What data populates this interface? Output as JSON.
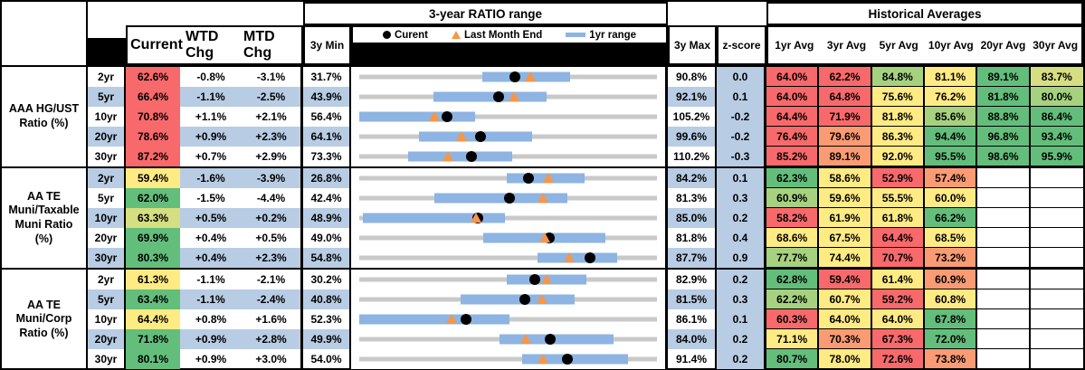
{
  "header": {
    "chart_title": "3-year RATIO range",
    "hist_title": "Historical Averages",
    "col_current": "Current",
    "col_wtd": "WTD Chg",
    "col_mtd": "MTD Chg",
    "col_min": "3y Min",
    "col_max": "3y Max",
    "col_z": "z-score",
    "avg_cols": [
      "1yr Avg",
      "3yr Avg",
      "5yr Avg",
      "10yr Avg",
      "20yr Avg",
      "30yr Avg"
    ],
    "legend": [
      {
        "marker": "current-dot",
        "label": "Curent"
      },
      {
        "marker": "last-month-end-triangle",
        "label": "Last Month End"
      },
      {
        "marker": "1yr-range-bar",
        "label": "1yr range"
      }
    ]
  },
  "palette": {
    "r": "#F8696B",
    "o": "#FA9B74",
    "y": "#FFEB84",
    "yg": "#D5DE81",
    "lg": "#A6D27F",
    "g": "#63BE7B",
    "w": "#FFFFFF",
    "stripe": "#B8CCE4",
    "range_bar": "#8DB4E2",
    "track": "#C9C9C9",
    "triangle": "#F79646",
    "dot": "#000000"
  },
  "chart_data": {
    "type": "table",
    "note": "Each row shows a 3-year ratio range chart: gray track spans 3y Min to 3y Max, blue bar = 1yr range, black dot = Current, orange triangle = Last Month End. Historical average cells are heat-mapped red-yellow-green.",
    "groups": [
      {
        "label": "AAA HG/UST\nRatio (%)",
        "stripe_offset": 1,
        "rows": [
          {
            "tenor": "2yr",
            "current": {
              "v": "62.6%",
              "c": "r"
            },
            "wtd": "-0.8%",
            "mtd": "-3.1%",
            "min": "31.7%",
            "max": "90.8%",
            "z": "0.0",
            "range": {
              "min": 31.7,
              "max": 90.8,
              "current": 62.6,
              "last_month_end": 65.7,
              "yr1_lo": 56.2,
              "yr1_hi": 73.5
            },
            "avgs": [
              {
                "v": "64.0%",
                "c": "r"
              },
              {
                "v": "62.2%",
                "c": "r"
              },
              {
                "v": "84.8%",
                "c": "lg"
              },
              {
                "v": "81.1%",
                "c": "y"
              },
              {
                "v": "89.1%",
                "c": "g"
              },
              {
                "v": "83.7%",
                "c": "yg"
              }
            ]
          },
          {
            "tenor": "5yr",
            "current": {
              "v": "66.4%",
              "c": "r"
            },
            "wtd": "-1.1%",
            "mtd": "-2.5%",
            "min": "43.9%",
            "max": "92.1%",
            "z": "0.1",
            "range": {
              "min": 43.9,
              "max": 92.1,
              "current": 66.4,
              "last_month_end": 68.9,
              "yr1_lo": 55.9,
              "yr1_hi": 74.2
            },
            "avgs": [
              {
                "v": "64.0%",
                "c": "r"
              },
              {
                "v": "64.8%",
                "c": "r"
              },
              {
                "v": "75.6%",
                "c": "y"
              },
              {
                "v": "76.2%",
                "c": "y"
              },
              {
                "v": "81.8%",
                "c": "g"
              },
              {
                "v": "80.0%",
                "c": "lg"
              }
            ]
          },
          {
            "tenor": "10yr",
            "current": {
              "v": "70.8%",
              "c": "r"
            },
            "wtd": "+1.1%",
            "mtd": "+2.1%",
            "min": "56.4%",
            "max": "105.2%",
            "z": "-0.2",
            "range": {
              "min": 56.4,
              "max": 105.2,
              "current": 70.8,
              "last_month_end": 68.7,
              "yr1_lo": 56.4,
              "yr1_hi": 75.4
            },
            "avgs": [
              {
                "v": "64.4%",
                "c": "r"
              },
              {
                "v": "71.9%",
                "c": "r"
              },
              {
                "v": "81.8%",
                "c": "y"
              },
              {
                "v": "85.6%",
                "c": "lg"
              },
              {
                "v": "88.8%",
                "c": "g"
              },
              {
                "v": "86.4%",
                "c": "g"
              }
            ]
          },
          {
            "tenor": "20yr",
            "current": {
              "v": "78.6%",
              "c": "r"
            },
            "wtd": "+0.9%",
            "mtd": "+2.3%",
            "min": "64.1%",
            "max": "99.6%",
            "z": "-0.2",
            "range": {
              "min": 64.1,
              "max": 99.6,
              "current": 78.6,
              "last_month_end": 76.3,
              "yr1_lo": 71.2,
              "yr1_hi": 84.7
            },
            "avgs": [
              {
                "v": "76.4%",
                "c": "r"
              },
              {
                "v": "79.6%",
                "c": "o"
              },
              {
                "v": "86.3%",
                "c": "y"
              },
              {
                "v": "94.4%",
                "c": "g"
              },
              {
                "v": "96.8%",
                "c": "g"
              },
              {
                "v": "93.4%",
                "c": "g"
              }
            ]
          },
          {
            "tenor": "30yr",
            "current": {
              "v": "87.2%",
              "c": "r"
            },
            "wtd": "+0.7%",
            "mtd": "+2.9%",
            "min": "73.3%",
            "max": "110.2%",
            "z": "-0.3",
            "range": {
              "min": 73.3,
              "max": 110.2,
              "current": 87.2,
              "last_month_end": 84.3,
              "yr1_lo": 79.4,
              "yr1_hi": 92.3
            },
            "avgs": [
              {
                "v": "85.2%",
                "c": "r"
              },
              {
                "v": "89.1%",
                "c": "o"
              },
              {
                "v": "92.0%",
                "c": "y"
              },
              {
                "v": "95.5%",
                "c": "g"
              },
              {
                "v": "98.6%",
                "c": "g"
              },
              {
                "v": "95.9%",
                "c": "g"
              }
            ]
          }
        ]
      },
      {
        "label": "AA TE\nMuni/Taxable\nMuni Ratio\n(%)",
        "stripe_offset": 0,
        "rows": [
          {
            "tenor": "2yr",
            "current": {
              "v": "59.4%",
              "c": "y"
            },
            "wtd": "-1.6%",
            "mtd": "-3.9%",
            "min": "26.8%",
            "max": "84.2%",
            "z": "0.1",
            "range": {
              "min": 26.8,
              "max": 84.2,
              "current": 59.4,
              "last_month_end": 63.3,
              "yr1_lo": 55.3,
              "yr1_hi": 70.3
            },
            "avgs": [
              {
                "v": "62.3%",
                "c": "g"
              },
              {
                "v": "58.6%",
                "c": "y"
              },
              {
                "v": "52.9%",
                "c": "r"
              },
              {
                "v": "57.4%",
                "c": "o"
              },
              null,
              null
            ]
          },
          {
            "tenor": "5yr",
            "current": {
              "v": "62.0%",
              "c": "g"
            },
            "wtd": "-1.5%",
            "mtd": "-4.4%",
            "min": "42.4%",
            "max": "81.3%",
            "z": "0.3",
            "range": {
              "min": 42.4,
              "max": 81.3,
              "current": 62.0,
              "last_month_end": 66.4,
              "yr1_lo": 52.2,
              "yr1_hi": 69.6
            },
            "avgs": [
              {
                "v": "60.9%",
                "c": "lg"
              },
              {
                "v": "59.6%",
                "c": "y"
              },
              {
                "v": "55.5%",
                "c": "y"
              },
              {
                "v": "60.0%",
                "c": "y"
              },
              null,
              null
            ]
          },
          {
            "tenor": "10yr",
            "current": {
              "v": "63.3%",
              "c": "yg"
            },
            "wtd": "+0.5%",
            "mtd": "+0.2%",
            "min": "48.9%",
            "max": "85.0%",
            "z": "0.2",
            "range": {
              "min": 48.9,
              "max": 85.0,
              "current": 63.3,
              "last_month_end": 63.1,
              "yr1_lo": 49.3,
              "yr1_hi": 66.6
            },
            "avgs": [
              {
                "v": "58.2%",
                "c": "r"
              },
              {
                "v": "61.9%",
                "c": "y"
              },
              {
                "v": "61.8%",
                "c": "y"
              },
              {
                "v": "66.2%",
                "c": "g"
              },
              null,
              null
            ]
          },
          {
            "tenor": "20yr",
            "current": {
              "v": "69.9%",
              "c": "g"
            },
            "wtd": "+0.4%",
            "mtd": "+0.5%",
            "min": "49.0%",
            "max": "81.8%",
            "z": "0.4",
            "range": {
              "min": 49.0,
              "max": 81.8,
              "current": 69.9,
              "last_month_end": 69.4,
              "yr1_lo": 62.7,
              "yr1_hi": 76.1
            },
            "avgs": [
              {
                "v": "68.6%",
                "c": "y"
              },
              {
                "v": "67.5%",
                "c": "y"
              },
              {
                "v": "64.4%",
                "c": "r"
              },
              {
                "v": "68.5%",
                "c": "y"
              },
              null,
              null
            ]
          },
          {
            "tenor": "30yr",
            "current": {
              "v": "80.3%",
              "c": "g"
            },
            "wtd": "+0.4%",
            "mtd": "+2.3%",
            "min": "54.8%",
            "max": "87.7%",
            "z": "0.9",
            "range": {
              "min": 54.8,
              "max": 87.7,
              "current": 80.3,
              "last_month_end": 78.0,
              "yr1_lo": 74.5,
              "yr1_hi": 83.3
            },
            "avgs": [
              {
                "v": "77.7%",
                "c": "lg"
              },
              {
                "v": "74.4%",
                "c": "y"
              },
              {
                "v": "70.7%",
                "c": "r"
              },
              {
                "v": "73.2%",
                "c": "o"
              },
              null,
              null
            ]
          }
        ]
      },
      {
        "label": "AA TE\nMuni/Corp\nRatio (%)",
        "stripe_offset": 1,
        "rows": [
          {
            "tenor": "2yr",
            "current": {
              "v": "61.3%",
              "c": "y"
            },
            "wtd": "-1.1%",
            "mtd": "-2.1%",
            "min": "30.2%",
            "max": "82.9%",
            "z": "0.2",
            "range": {
              "min": 30.2,
              "max": 82.9,
              "current": 61.3,
              "last_month_end": 63.4,
              "yr1_lo": 56.3,
              "yr1_hi": 70.4
            },
            "avgs": [
              {
                "v": "62.8%",
                "c": "g"
              },
              {
                "v": "59.4%",
                "c": "r"
              },
              {
                "v": "61.4%",
                "c": "y"
              },
              {
                "v": "60.9%",
                "c": "o"
              },
              null,
              null
            ]
          },
          {
            "tenor": "5yr",
            "current": {
              "v": "63.4%",
              "c": "g"
            },
            "wtd": "-1.1%",
            "mtd": "-2.4%",
            "min": "40.8%",
            "max": "81.5%",
            "z": "0.3",
            "range": {
              "min": 40.8,
              "max": 81.5,
              "current": 63.4,
              "last_month_end": 65.8,
              "yr1_lo": 54.6,
              "yr1_hi": 70.3
            },
            "avgs": [
              {
                "v": "62.2%",
                "c": "lg"
              },
              {
                "v": "60.7%",
                "c": "y"
              },
              {
                "v": "59.2%",
                "c": "r"
              },
              {
                "v": "60.8%",
                "c": "y"
              },
              null,
              null
            ]
          },
          {
            "tenor": "10yr",
            "current": {
              "v": "64.4%",
              "c": "y"
            },
            "wtd": "+0.8%",
            "mtd": "+1.6%",
            "min": "52.3%",
            "max": "86.1%",
            "z": "0.1",
            "range": {
              "min": 52.3,
              "max": 86.1,
              "current": 64.4,
              "last_month_end": 62.8,
              "yr1_lo": 52.3,
              "yr1_hi": 69.4
            },
            "avgs": [
              {
                "v": "60.3%",
                "c": "r"
              },
              {
                "v": "64.0%",
                "c": "y"
              },
              {
                "v": "64.0%",
                "c": "y"
              },
              {
                "v": "67.8%",
                "c": "g"
              },
              null,
              null
            ]
          },
          {
            "tenor": "20yr",
            "current": {
              "v": "71.8%",
              "c": "g"
            },
            "wtd": "+0.9%",
            "mtd": "+2.8%",
            "min": "49.9%",
            "max": "84.0%",
            "z": "0.2",
            "range": {
              "min": 49.9,
              "max": 84.0,
              "current": 71.8,
              "last_month_end": 69.0,
              "yr1_lo": 66.0,
              "yr1_hi": 79.0
            },
            "avgs": [
              {
                "v": "71.1%",
                "c": "y"
              },
              {
                "v": "70.3%",
                "c": "o"
              },
              {
                "v": "67.3%",
                "c": "r"
              },
              {
                "v": "72.0%",
                "c": "g"
              },
              null,
              null
            ]
          },
          {
            "tenor": "30yr",
            "current": {
              "v": "80.1%",
              "c": "g"
            },
            "wtd": "+0.9%",
            "mtd": "+3.0%",
            "min": "54.0%",
            "max": "91.4%",
            "z": "0.2",
            "range": {
              "min": 54.0,
              "max": 91.4,
              "current": 80.1,
              "last_month_end": 77.1,
              "yr1_lo": 74.5,
              "yr1_hi": 87.8
            },
            "avgs": [
              {
                "v": "80.7%",
                "c": "g"
              },
              {
                "v": "78.0%",
                "c": "y"
              },
              {
                "v": "72.6%",
                "c": "r"
              },
              {
                "v": "73.8%",
                "c": "o"
              },
              null,
              null
            ]
          }
        ]
      }
    ]
  }
}
